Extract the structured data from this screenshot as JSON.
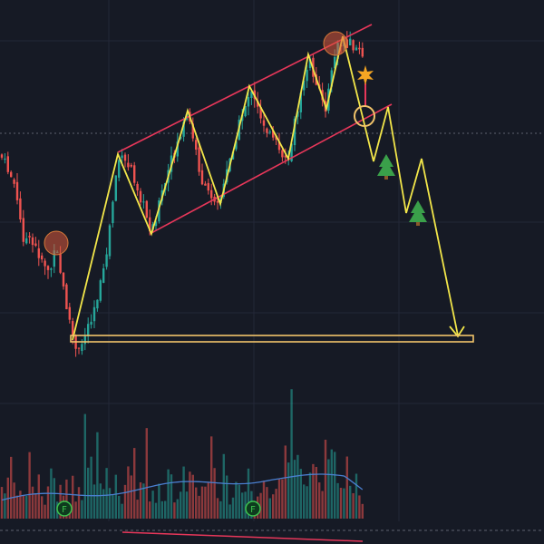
{
  "markers": [
    {
      "label": "F"
    },
    {
      "label": "F"
    }
  ]
}
